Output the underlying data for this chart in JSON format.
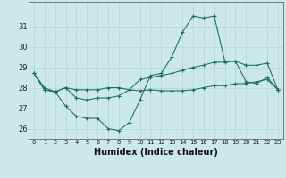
{
  "xlabel": "Humidex (Indice chaleur)",
  "background_color": "#cce8e8",
  "grid_color": "#b8d8d8",
  "line_color": "#1a6b6b",
  "x": [
    0,
    1,
    2,
    3,
    4,
    5,
    6,
    7,
    8,
    9,
    10,
    11,
    12,
    13,
    14,
    15,
    16,
    17,
    18,
    19,
    20,
    21,
    22,
    23
  ],
  "line1": [
    28.7,
    28.0,
    27.8,
    27.1,
    26.6,
    26.5,
    26.5,
    26.0,
    25.9,
    26.3,
    27.4,
    28.6,
    28.7,
    29.5,
    30.7,
    31.5,
    31.4,
    31.5,
    29.3,
    29.3,
    28.3,
    28.2,
    28.5,
    27.9
  ],
  "line2": [
    28.7,
    27.9,
    27.8,
    28.0,
    27.5,
    27.4,
    27.5,
    27.5,
    27.6,
    27.9,
    28.4,
    28.5,
    28.6,
    28.7,
    28.85,
    29.0,
    29.1,
    29.25,
    29.25,
    29.3,
    29.1,
    29.1,
    29.2,
    27.9
  ],
  "line3": [
    28.7,
    27.9,
    27.8,
    28.0,
    27.9,
    27.9,
    27.9,
    28.0,
    28.0,
    27.9,
    27.85,
    27.9,
    27.85,
    27.85,
    27.85,
    27.9,
    28.0,
    28.1,
    28.1,
    28.2,
    28.2,
    28.3,
    28.4,
    27.9
  ],
  "ylim": [
    25.5,
    32.2
  ],
  "yticks": [
    26,
    27,
    28,
    29,
    30,
    31
  ],
  "xlim": [
    -0.5,
    23.5
  ],
  "xticks": [
    0,
    1,
    2,
    3,
    4,
    5,
    6,
    7,
    8,
    9,
    10,
    11,
    12,
    13,
    14,
    15,
    16,
    17,
    18,
    19,
    20,
    21,
    22,
    23
  ]
}
